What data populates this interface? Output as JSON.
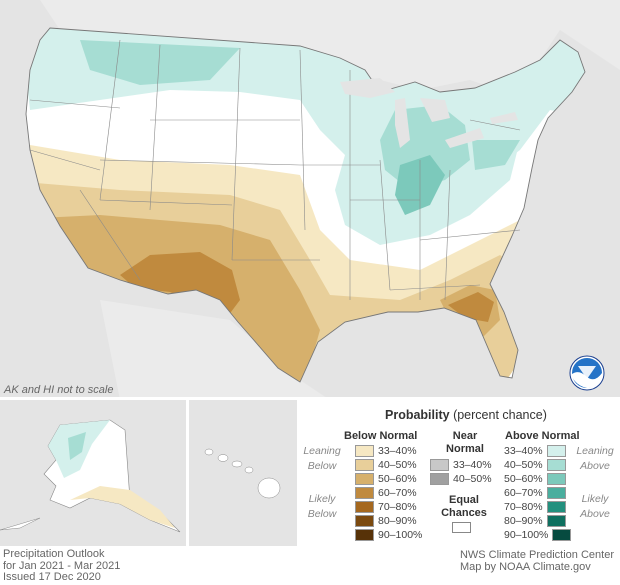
{
  "notes": {
    "scale": "AK and HI not to scale"
  },
  "legend": {
    "title_bold": "Probability",
    "title_rest": " (percent chance)",
    "below_head": "Below Normal",
    "near_head_1": "Near",
    "near_head_2": "Normal",
    "above_head": "Above Normal",
    "equal_1": "Equal",
    "equal_2": "Chances",
    "leaning_below_1": "Leaning",
    "leaning_below_2": "Below",
    "likely_below_1": "Likely",
    "likely_below_2": "Below",
    "leaning_above_1": "Leaning",
    "leaning_above_2": "Above",
    "likely_above_1": "Likely",
    "likely_above_2": "Above",
    "below": [
      {
        "label": "33–40%",
        "color": "#f6e8c3"
      },
      {
        "label": "40–50%",
        "color": "#e8cf9a"
      },
      {
        "label": "50–60%",
        "color": "#d6b06c"
      },
      {
        "label": "60–70%",
        "color": "#c08a3e"
      },
      {
        "label": "70–80%",
        "color": "#a5681f"
      },
      {
        "label": "80–90%",
        "color": "#7b4a10"
      },
      {
        "label": "90–100%",
        "color": "#573208"
      }
    ],
    "near": [
      {
        "label": "33–40%",
        "color": "#c8c8c8"
      },
      {
        "label": "40–50%",
        "color": "#a0a0a0"
      }
    ],
    "above": [
      {
        "label": "33–40%",
        "color": "#d4f0ec"
      },
      {
        "label": "40–50%",
        "color": "#a6ddd3"
      },
      {
        "label": "50–60%",
        "color": "#7cc9bb"
      },
      {
        "label": "60–70%",
        "color": "#4aae9e"
      },
      {
        "label": "70–80%",
        "color": "#23907e"
      },
      {
        "label": "80–90%",
        "color": "#0f6f5f"
      },
      {
        "label": "90–100%",
        "color": "#064b40"
      }
    ]
  },
  "footer": {
    "left_1": "Precipitation Outlook",
    "left_2": "for Jan 2021 - Mar 2021",
    "left_3": "Issued 17 Dec 2020",
    "right_1": "NWS Climate Prediction Center",
    "right_2": "Map by NOAA Climate.gov"
  },
  "logo": {
    "text": "NOAA"
  }
}
